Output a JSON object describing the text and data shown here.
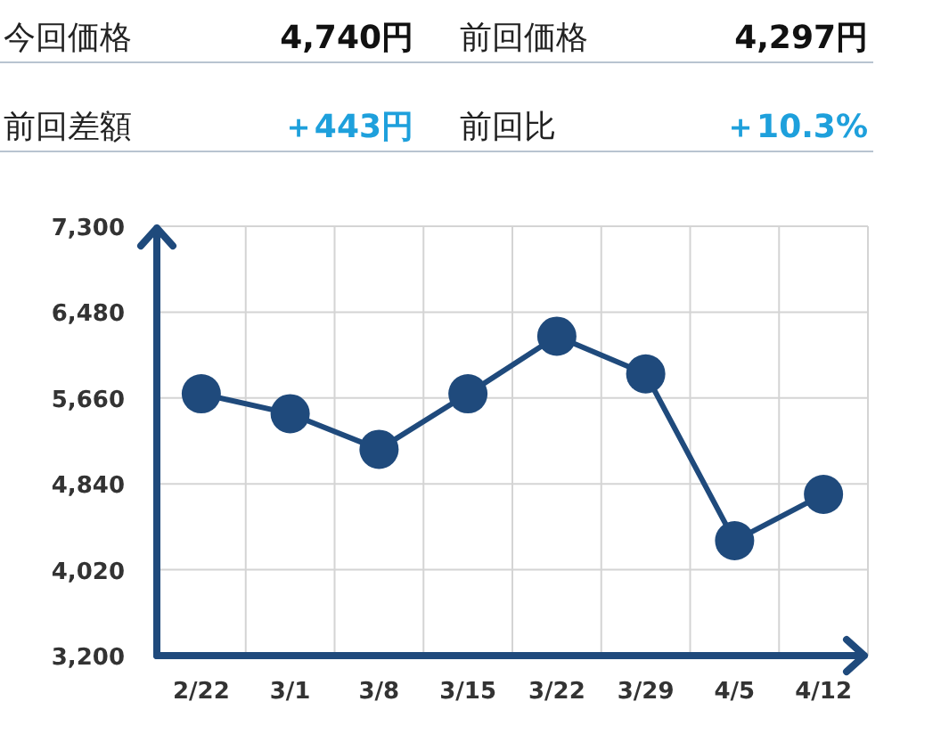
{
  "chart_data": [
    {
      "type": "other",
      "annotations": [
        "今回価格",
        "4,740円",
        "前回価格",
        "4,297円",
        "前回差額",
        "＋443円",
        "前回比",
        "＋10.3%"
      ]
    },
    {
      "type": "line",
      "categories": [
        "2/22",
        "3/1",
        "3/8",
        "3/15",
        "3/22",
        "3/29",
        "4/5",
        "4/12"
      ],
      "series": [
        {
          "color": "#1f4a7c",
          "values": [
            5700,
            5510,
            5170,
            5700,
            6250,
            5890,
            4297,
            4740
          ]
        }
      ],
      "ylim": [
        3200,
        7300
      ],
      "yticks": [
        {
          "value": 3200,
          "label": "3,200"
        },
        {
          "value": 4020,
          "label": "4,020"
        },
        {
          "value": 4840,
          "label": "4,840"
        },
        {
          "value": 5660,
          "label": "5,660"
        },
        {
          "value": 6480,
          "label": "6,480"
        },
        {
          "value": 7300,
          "label": "7,300"
        }
      ],
      "grid": true,
      "marker": "circle"
    }
  ]
}
